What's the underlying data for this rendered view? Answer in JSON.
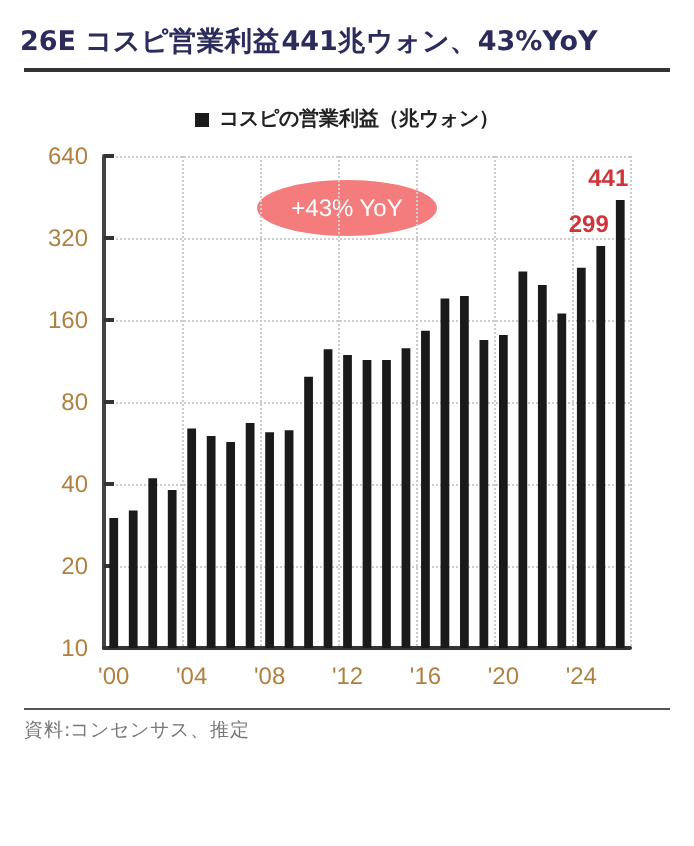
{
  "chart_data": {
    "type": "bar",
    "title": "26E コスピ営業利益441兆ウォン、43%YoY",
    "categories": [
      "'00",
      null,
      null,
      null,
      "'04",
      null,
      null,
      null,
      "'08",
      null,
      null,
      null,
      "'12",
      null,
      null,
      null,
      "'16",
      null,
      null,
      null,
      "'20",
      null,
      null,
      null,
      "'24",
      null,
      null
    ],
    "series": [
      {
        "name": "コスピの営業利益（兆ウォン）",
        "color": "#1a1a1a",
        "values": [
          30,
          32,
          42,
          38,
          64,
          60,
          57,
          67,
          62,
          63,
          99,
          125,
          119,
          114,
          114,
          126,
          146,
          192,
          196,
          135,
          141,
          241,
          215,
          169,
          249,
          299,
          441
        ],
        "value_labels": [
          null,
          null,
          null,
          null,
          null,
          null,
          null,
          null,
          null,
          null,
          null,
          null,
          null,
          null,
          null,
          null,
          null,
          null,
          null,
          null,
          null,
          null,
          null,
          null,
          null,
          "299",
          "441"
        ]
      }
    ],
    "log": "y",
    "ylim": [
      10,
      640
    ],
    "yticks": [
      10,
      20,
      40,
      80,
      160,
      320,
      640
    ],
    "grid": true,
    "legend": "top",
    "annotations": [
      "+43% YoY",
      "資料:コンセンサス、推定"
    ]
  }
}
